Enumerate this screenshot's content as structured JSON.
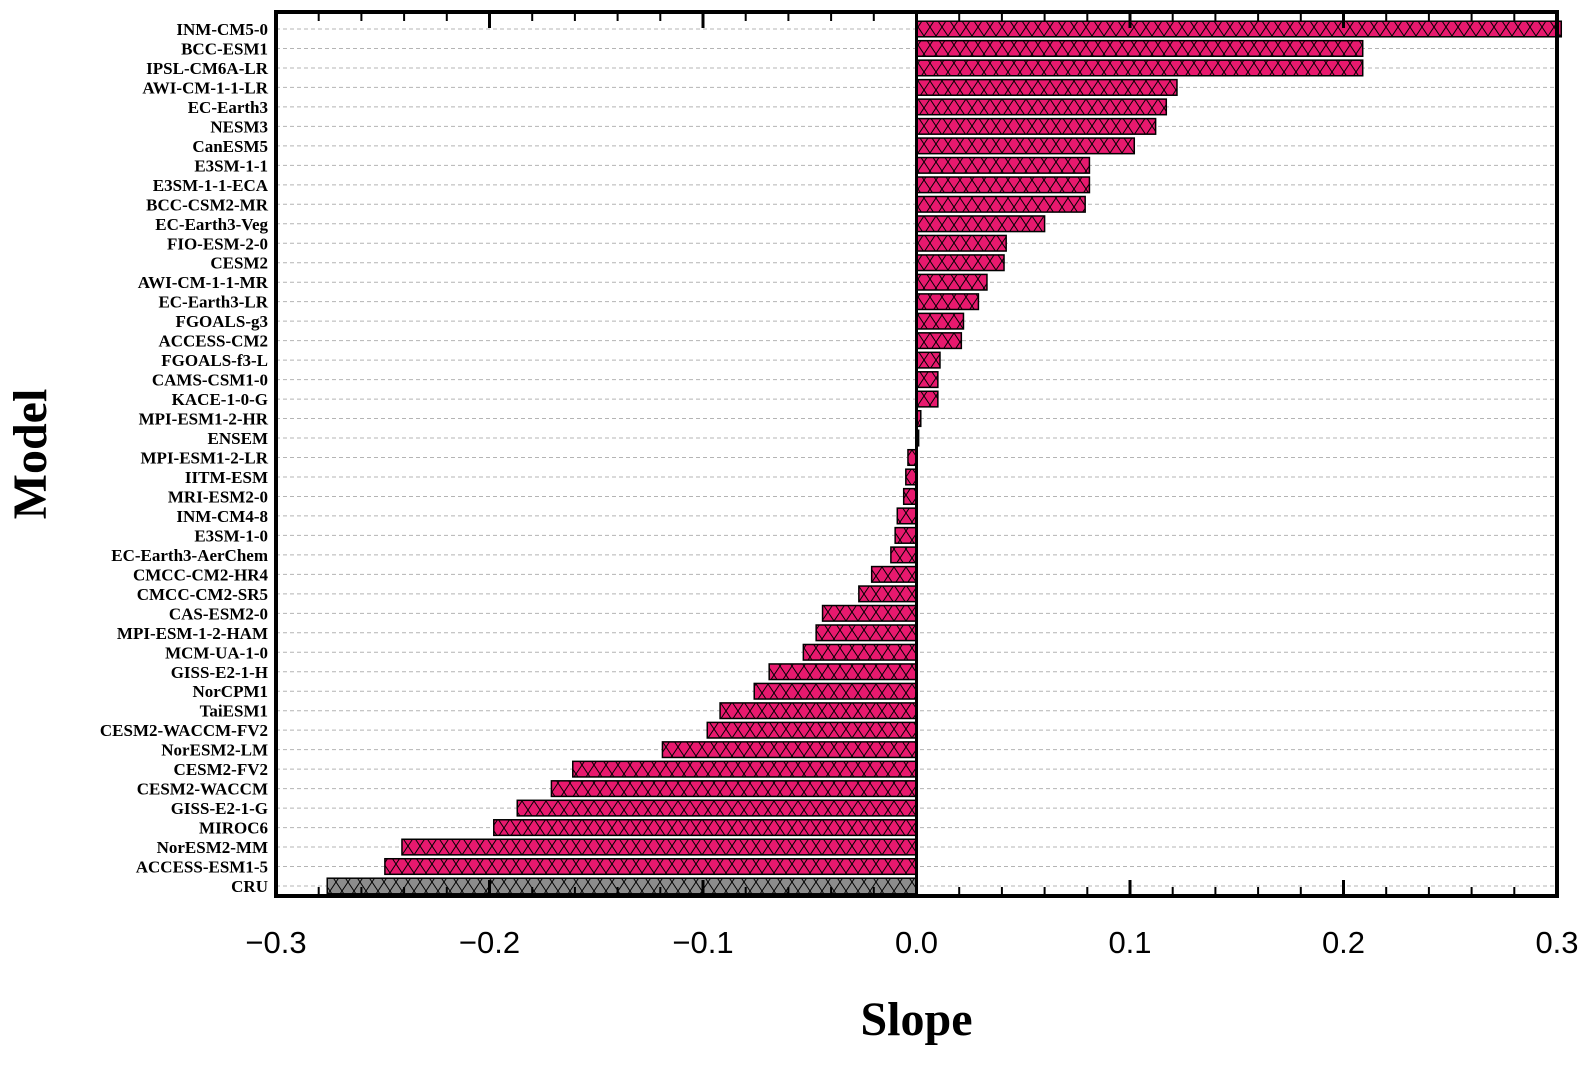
{
  "chart_data": {
    "type": "bar",
    "orientation": "horizontal",
    "xlabel": "Slope",
    "ylabel": "Model",
    "xlim": [
      -0.3,
      0.3
    ],
    "x_ticks": [
      "−0.3",
      "−0.2",
      "−0.1",
      "0.0",
      "0.1",
      "0.2",
      "0.3"
    ],
    "grid": "horizontal dashed",
    "colors": {
      "models": "#e8196e",
      "observation": "#8c8c8c",
      "outline": "#000000"
    },
    "fill_pattern": "cross-hatch",
    "categories": [
      "INM-CM5-0",
      "BCC-ESM1",
      "IPSL-CM6A-LR",
      "AWI-CM-1-1-LR",
      "EC-Earth3",
      "NESM3",
      "CanESM5",
      "E3SM-1-1",
      "E3SM-1-1-ECA",
      "BCC-CSM2-MR",
      "EC-Earth3-Veg",
      "FIO-ESM-2-0",
      "CESM2",
      "AWI-CM-1-1-MR",
      "EC-Earth3-LR",
      "FGOALS-g3",
      "ACCESS-CM2",
      "FGOALS-f3-L",
      "CAMS-CSM1-0",
      "KACE-1-0-G",
      "MPI-ESM1-2-HR",
      "ENSEM",
      "MPI-ESM1-2-LR",
      "IITM-ESM",
      "MRI-ESM2-0",
      "INM-CM4-8",
      "E3SM-1-0",
      "EC-Earth3-AerChem",
      "CMCC-CM2-HR4",
      "CMCC-CM2-SR5",
      "CAS-ESM2-0",
      "MPI-ESM-1-2-HAM",
      "MCM-UA-1-0",
      "GISS-E2-1-H",
      "NorCPM1",
      "TaiESM1",
      "CESM2-WACCM-FV2",
      "NorESM2-LM",
      "CESM2-FV2",
      "CESM2-WACCM",
      "GISS-E2-1-G",
      "MIROC6",
      "NorESM2-MM",
      "ACCESS-ESM1-5",
      "CRU"
    ],
    "values": [
      0.302,
      0.209,
      0.209,
      0.122,
      0.117,
      0.112,
      0.102,
      0.081,
      0.081,
      0.079,
      0.06,
      0.042,
      0.041,
      0.033,
      0.029,
      0.022,
      0.021,
      0.011,
      0.01,
      0.01,
      0.002,
      0.001,
      -0.004,
      -0.005,
      -0.006,
      -0.009,
      -0.01,
      -0.012,
      -0.021,
      -0.027,
      -0.044,
      -0.047,
      -0.053,
      -0.069,
      -0.076,
      -0.092,
      -0.098,
      -0.119,
      -0.161,
      -0.171,
      -0.187,
      -0.198,
      -0.241,
      -0.249,
      -0.276
    ]
  }
}
